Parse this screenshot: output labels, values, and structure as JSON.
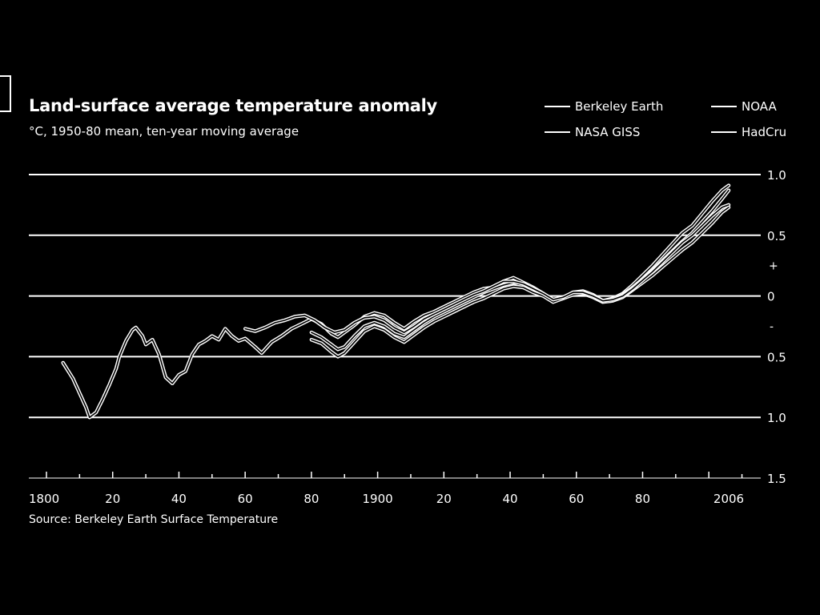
{
  "chart_data": {
    "type": "line",
    "title": "Land-surface average temperature anomaly",
    "subtitle": "°C, 1950-80 mean, ten-year moving average",
    "source": "Source: Berkeley Earth Surface Temperature",
    "y_axis": {
      "ticks": [
        1.0,
        0.5,
        0,
        -0.5,
        -1.0,
        -1.5
      ],
      "tick_labels": [
        "1.0",
        "0.5",
        "0",
        "0.5",
        "1.0",
        "1.5"
      ],
      "sign_markers": [
        "+",
        "-"
      ],
      "ylim": [
        -1.5,
        1.0
      ],
      "position": "right"
    },
    "x_axis": {
      "ticks": [
        1800,
        1820,
        1840,
        1860,
        1880,
        1900,
        1920,
        1940,
        1960,
        1980,
        2006
      ],
      "tick_labels": [
        "1800",
        "20",
        "40",
        "60",
        "80",
        "1900",
        "20",
        "40",
        "60",
        "80",
        "2006"
      ],
      "xlim": [
        1800,
        2016
      ]
    },
    "grid": "horizontal",
    "legend_position": "top-right",
    "series": [
      {
        "name": "Berkeley Earth",
        "points": [
          [
            1805,
            -0.55
          ],
          [
            1808,
            -0.68
          ],
          [
            1810,
            -0.8
          ],
          [
            1812,
            -0.92
          ],
          [
            1813,
            -1.0
          ],
          [
            1815,
            -0.96
          ],
          [
            1817,
            -0.85
          ],
          [
            1819,
            -0.73
          ],
          [
            1821,
            -0.6
          ],
          [
            1822,
            -0.5
          ],
          [
            1824,
            -0.37
          ],
          [
            1826,
            -0.28
          ],
          [
            1827,
            -0.26
          ],
          [
            1829,
            -0.33
          ],
          [
            1830,
            -0.4
          ],
          [
            1832,
            -0.36
          ],
          [
            1834,
            -0.48
          ],
          [
            1836,
            -0.67
          ],
          [
            1838,
            -0.72
          ],
          [
            1840,
            -0.65
          ],
          [
            1842,
            -0.62
          ],
          [
            1844,
            -0.48
          ],
          [
            1846,
            -0.4
          ],
          [
            1848,
            -0.37
          ],
          [
            1850,
            -0.33
          ],
          [
            1852,
            -0.36
          ],
          [
            1854,
            -0.27
          ],
          [
            1856,
            -0.33
          ],
          [
            1858,
            -0.37
          ],
          [
            1860,
            -0.35
          ],
          [
            1863,
            -0.42
          ],
          [
            1865,
            -0.47
          ],
          [
            1868,
            -0.38
          ],
          [
            1871,
            -0.33
          ],
          [
            1874,
            -0.27
          ],
          [
            1877,
            -0.23
          ],
          [
            1880,
            -0.19
          ],
          [
            1883,
            -0.23
          ],
          [
            1886,
            -0.31
          ],
          [
            1888,
            -0.34
          ],
          [
            1890,
            -0.3
          ],
          [
            1893,
            -0.24
          ],
          [
            1896,
            -0.17
          ],
          [
            1899,
            -0.14
          ],
          [
            1902,
            -0.16
          ],
          [
            1905,
            -0.22
          ],
          [
            1908,
            -0.27
          ],
          [
            1911,
            -0.21
          ],
          [
            1914,
            -0.16
          ],
          [
            1917,
            -0.13
          ],
          [
            1920,
            -0.09
          ],
          [
            1923,
            -0.05
          ],
          [
            1926,
            -0.01
          ],
          [
            1929,
            0.03
          ],
          [
            1932,
            0.06
          ],
          [
            1935,
            0.07
          ],
          [
            1938,
            0.12
          ],
          [
            1941,
            0.15
          ],
          [
            1944,
            0.11
          ],
          [
            1947,
            0.07
          ],
          [
            1950,
            0.02
          ],
          [
            1953,
            -0.04
          ],
          [
            1956,
            -0.02
          ],
          [
            1959,
            0.03
          ],
          [
            1962,
            0.04
          ],
          [
            1965,
            0.01
          ],
          [
            1968,
            -0.04
          ],
          [
            1971,
            -0.02
          ],
          [
            1974,
            0.02
          ],
          [
            1977,
            0.09
          ],
          [
            1980,
            0.17
          ],
          [
            1983,
            0.25
          ],
          [
            1986,
            0.34
          ],
          [
            1989,
            0.43
          ],
          [
            1992,
            0.52
          ],
          [
            1995,
            0.58
          ],
          [
            1998,
            0.68
          ],
          [
            2001,
            0.78
          ],
          [
            2004,
            0.87
          ],
          [
            2006,
            0.91
          ]
        ]
      },
      {
        "name": "NASA GISS",
        "points": [
          [
            1880,
            -0.3
          ],
          [
            1883,
            -0.34
          ],
          [
            1886,
            -0.4
          ],
          [
            1888,
            -0.44
          ],
          [
            1890,
            -0.42
          ],
          [
            1893,
            -0.33
          ],
          [
            1896,
            -0.25
          ],
          [
            1899,
            -0.22
          ],
          [
            1902,
            -0.25
          ],
          [
            1905,
            -0.31
          ],
          [
            1908,
            -0.34
          ],
          [
            1911,
            -0.28
          ],
          [
            1914,
            -0.22
          ],
          [
            1917,
            -0.17
          ],
          [
            1920,
            -0.13
          ],
          [
            1923,
            -0.09
          ],
          [
            1926,
            -0.05
          ],
          [
            1929,
            -0.01
          ],
          [
            1932,
            0.03
          ],
          [
            1935,
            0.06
          ],
          [
            1938,
            0.09
          ],
          [
            1941,
            0.11
          ],
          [
            1944,
            0.08
          ],
          [
            1947,
            0.04
          ],
          [
            1950,
            0.01
          ],
          [
            1953,
            -0.04
          ],
          [
            1956,
            -0.01
          ],
          [
            1959,
            0.02
          ],
          [
            1962,
            0.03
          ],
          [
            1965,
            0.0
          ],
          [
            1968,
            -0.04
          ],
          [
            1971,
            -0.03
          ],
          [
            1974,
            0.01
          ],
          [
            1977,
            0.07
          ],
          [
            1980,
            0.14
          ],
          [
            1983,
            0.21
          ],
          [
            1986,
            0.29
          ],
          [
            1989,
            0.37
          ],
          [
            1992,
            0.45
          ],
          [
            1995,
            0.52
          ],
          [
            1998,
            0.61
          ],
          [
            2001,
            0.7
          ],
          [
            2004,
            0.8
          ],
          [
            2006,
            0.87
          ]
        ]
      },
      {
        "name": "NOAA",
        "points": [
          [
            1880,
            -0.36
          ],
          [
            1883,
            -0.39
          ],
          [
            1886,
            -0.46
          ],
          [
            1888,
            -0.5
          ],
          [
            1890,
            -0.47
          ],
          [
            1893,
            -0.38
          ],
          [
            1896,
            -0.29
          ],
          [
            1899,
            -0.25
          ],
          [
            1902,
            -0.28
          ],
          [
            1905,
            -0.34
          ],
          [
            1908,
            -0.38
          ],
          [
            1911,
            -0.32
          ],
          [
            1914,
            -0.26
          ],
          [
            1917,
            -0.21
          ],
          [
            1920,
            -0.17
          ],
          [
            1923,
            -0.13
          ],
          [
            1926,
            -0.09
          ],
          [
            1929,
            -0.05
          ],
          [
            1932,
            -0.02
          ],
          [
            1935,
            0.02
          ],
          [
            1938,
            0.06
          ],
          [
            1941,
            0.08
          ],
          [
            1944,
            0.07
          ],
          [
            1947,
            0.03
          ],
          [
            1950,
            0.0
          ],
          [
            1953,
            -0.05
          ],
          [
            1956,
            -0.02
          ],
          [
            1959,
            0.01
          ],
          [
            1962,
            0.02
          ],
          [
            1965,
            -0.01
          ],
          [
            1968,
            -0.05
          ],
          [
            1971,
            -0.04
          ],
          [
            1974,
            -0.01
          ],
          [
            1977,
            0.05
          ],
          [
            1980,
            0.11
          ],
          [
            1983,
            0.17
          ],
          [
            1986,
            0.24
          ],
          [
            1989,
            0.31
          ],
          [
            1992,
            0.38
          ],
          [
            1995,
            0.44
          ],
          [
            1998,
            0.52
          ],
          [
            2001,
            0.6
          ],
          [
            2004,
            0.69
          ],
          [
            2006,
            0.73
          ]
        ]
      },
      {
        "name": "HadCru",
        "points": [
          [
            1860,
            -0.27
          ],
          [
            1863,
            -0.29
          ],
          [
            1866,
            -0.26
          ],
          [
            1869,
            -0.22
          ],
          [
            1872,
            -0.2
          ],
          [
            1875,
            -0.17
          ],
          [
            1878,
            -0.16
          ],
          [
            1881,
            -0.2
          ],
          [
            1884,
            -0.26
          ],
          [
            1887,
            -0.3
          ],
          [
            1890,
            -0.28
          ],
          [
            1893,
            -0.22
          ],
          [
            1896,
            -0.18
          ],
          [
            1899,
            -0.17
          ],
          [
            1902,
            -0.2
          ],
          [
            1905,
            -0.26
          ],
          [
            1908,
            -0.3
          ],
          [
            1911,
            -0.25
          ],
          [
            1914,
            -0.19
          ],
          [
            1917,
            -0.15
          ],
          [
            1920,
            -0.11
          ],
          [
            1923,
            -0.07
          ],
          [
            1926,
            -0.03
          ],
          [
            1929,
            0.01
          ],
          [
            1932,
            0.04
          ],
          [
            1935,
            0.08
          ],
          [
            1938,
            0.12
          ],
          [
            1941,
            0.12
          ],
          [
            1944,
            0.1
          ],
          [
            1947,
            0.06
          ],
          [
            1950,
            0.02
          ],
          [
            1953,
            -0.03
          ],
          [
            1956,
            -0.01
          ],
          [
            1959,
            0.03
          ],
          [
            1962,
            0.03
          ],
          [
            1965,
            0.0
          ],
          [
            1968,
            -0.04
          ],
          [
            1971,
            -0.03
          ],
          [
            1974,
            0.0
          ],
          [
            1977,
            0.06
          ],
          [
            1980,
            0.13
          ],
          [
            1983,
            0.2
          ],
          [
            1986,
            0.28
          ],
          [
            1989,
            0.36
          ],
          [
            1992,
            0.44
          ],
          [
            1995,
            0.5
          ],
          [
            1998,
            0.58
          ],
          [
            2001,
            0.66
          ],
          [
            2004,
            0.73
          ],
          [
            2006,
            0.75
          ]
        ]
      }
    ]
  },
  "legend": [
    {
      "label": "Berkeley Earth"
    },
    {
      "label": "NOAA"
    },
    {
      "label": "NASA GISS"
    },
    {
      "label": "HadCru"
    }
  ],
  "colors": {
    "background": "#000000",
    "foreground": "#ffffff"
  }
}
